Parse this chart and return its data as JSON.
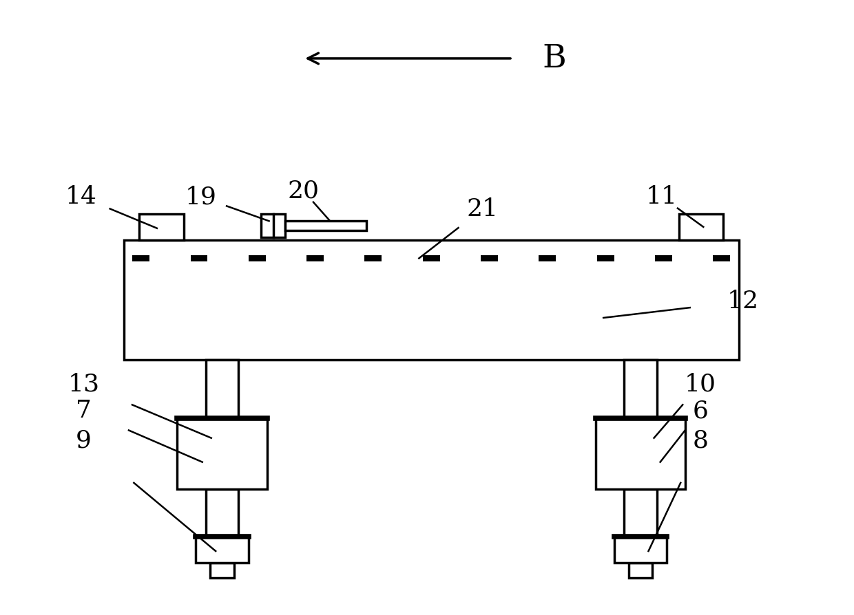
{
  "bg_color": "#ffffff",
  "line_color": "#000000",
  "lw": 2.5,
  "figsize": [
    12.4,
    8.94
  ],
  "dpi": 100,
  "label_fontsize": 26
}
